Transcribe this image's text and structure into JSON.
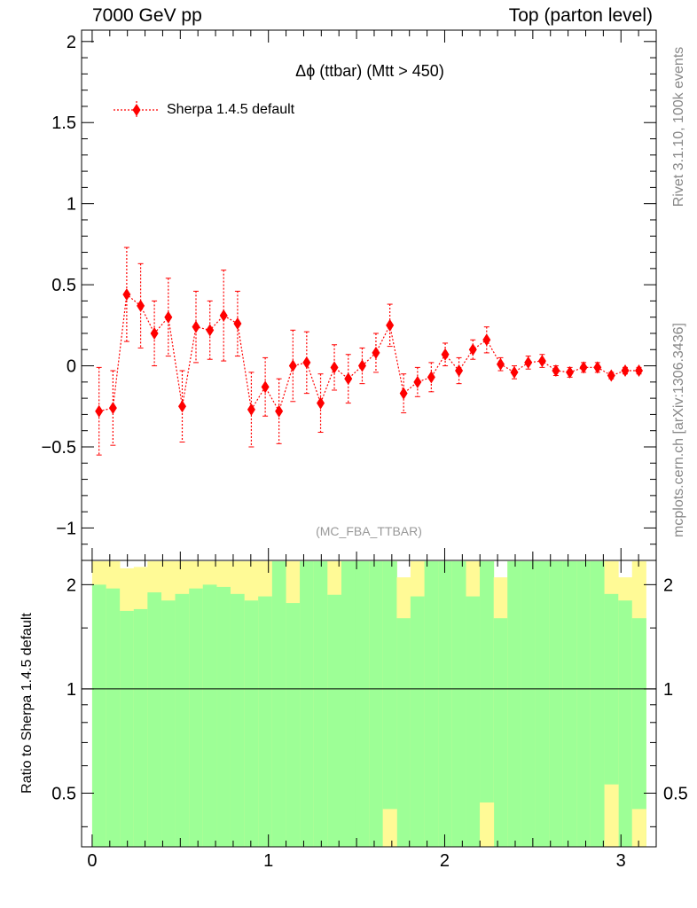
{
  "header": {
    "left": "7000 GeV pp",
    "right": "Top (parton level)"
  },
  "side": {
    "rivet": "Rivet 3.1.10,  100k events",
    "mcplots": "mcplots.cern.ch [arXiv:1306.3436]"
  },
  "ratio_ylabel": "Ratio to Sherpa 1.4.5 default",
  "colors": {
    "series": "#ff0000",
    "band_inner": "#9dff96",
    "band_outer": "#fffa96"
  },
  "chart_data": [
    {
      "type": "line",
      "title": "Δϕ (ttbar) (Mtt > 450)",
      "watermark": "(MC_FBA_TTBAR)",
      "xlim": [
        -0.06,
        3.2
      ],
      "ylim": [
        -1.2,
        2.07
      ],
      "yticks": [
        -1,
        -0.5,
        0,
        0.5,
        1,
        1.5,
        2
      ],
      "ytick_labels": [
        "−1",
        "−0.5",
        "0",
        "0.5",
        "1",
        "1.5",
        "2"
      ],
      "series": [
        {
          "name": "Sherpa 1.4.5 default",
          "style": "red diamond markers, dotted line, error bars",
          "x": [
            0.039,
            0.118,
            0.196,
            0.275,
            0.353,
            0.432,
            0.511,
            0.589,
            0.668,
            0.746,
            0.825,
            0.903,
            0.982,
            1.06,
            1.139,
            1.217,
            1.296,
            1.374,
            1.453,
            1.532,
            1.61,
            1.689,
            1.767,
            1.846,
            1.924,
            2.003,
            2.081,
            2.16,
            2.238,
            2.317,
            2.395,
            2.474,
            2.553,
            2.631,
            2.71,
            2.788,
            2.867,
            2.945,
            3.024,
            3.102
          ],
          "y": [
            -0.28,
            -0.26,
            0.44,
            0.37,
            0.2,
            0.3,
            -0.25,
            0.24,
            0.22,
            0.31,
            0.26,
            -0.27,
            -0.13,
            -0.28,
            0.0,
            0.02,
            -0.23,
            -0.01,
            -0.08,
            0.0,
            0.08,
            0.25,
            -0.17,
            -0.1,
            -0.07,
            0.07,
            -0.03,
            0.1,
            0.16,
            0.01,
            -0.04,
            0.02,
            0.03,
            -0.03,
            -0.04,
            -0.01,
            -0.01,
            -0.06,
            -0.03,
            -0.03
          ],
          "yerr": [
            0.27,
            0.23,
            0.29,
            0.26,
            0.2,
            0.24,
            0.22,
            0.22,
            0.18,
            0.28,
            0.2,
            0.23,
            0.18,
            0.2,
            0.22,
            0.19,
            0.18,
            0.14,
            0.15,
            0.11,
            0.12,
            0.13,
            0.12,
            0.09,
            0.09,
            0.07,
            0.08,
            0.06,
            0.08,
            0.04,
            0.04,
            0.04,
            0.04,
            0.03,
            0.03,
            0.03,
            0.03,
            0.02,
            0.02,
            0.02
          ]
        }
      ]
    },
    {
      "type": "area",
      "ylabel": "Ratio to Sherpa 1.4.5 default",
      "xlim": [
        -0.06,
        3.2
      ],
      "ylim": [
        0.35,
        2.35
      ],
      "yscale": "log",
      "yticks": [
        0.5,
        1,
        2
      ],
      "ytick_labels": [
        "0.5",
        "1",
        "2"
      ],
      "xticks": [
        0,
        1,
        2,
        3
      ],
      "xtick_labels": [
        "0",
        "1",
        "2",
        "3"
      ],
      "reference_line": 1,
      "bin_edges": [
        0.0,
        0.079,
        0.157,
        0.236,
        0.314,
        0.393,
        0.471,
        0.55,
        0.628,
        0.707,
        0.785,
        0.864,
        0.942,
        1.021,
        1.1,
        1.178,
        1.257,
        1.335,
        1.414,
        1.492,
        1.571,
        1.649,
        1.728,
        1.806,
        1.885,
        1.963,
        2.042,
        2.121,
        2.199,
        2.278,
        2.356,
        2.435,
        2.513,
        2.592,
        2.67,
        2.749,
        2.827,
        2.906,
        2.985,
        3.063,
        3.142
      ],
      "bands": [
        {
          "name": "inner",
          "low": [
            0,
            0,
            0,
            0,
            0,
            0,
            0,
            0,
            0,
            0,
            0,
            0,
            0,
            0,
            0,
            0,
            0,
            0,
            0,
            0,
            0,
            0,
            0,
            0,
            0,
            0,
            0,
            0,
            0,
            0,
            0,
            0,
            0,
            0,
            0,
            0,
            0,
            0,
            0,
            0
          ],
          "high": [
            2.0,
            1.95,
            1.68,
            1.7,
            1.9,
            1.8,
            1.88,
            1.95,
            2.0,
            1.97,
            1.88,
            1.8,
            1.85,
            2.4,
            1.77,
            2.4,
            2.4,
            1.87,
            2.4,
            2.4,
            2.4,
            2.4,
            1.6,
            1.85,
            2.4,
            2.4,
            2.4,
            1.85,
            2.4,
            1.6,
            2.4,
            2.4,
            2.4,
            2.4,
            2.4,
            2.4,
            2.4,
            1.88,
            1.8,
            1.6
          ]
        },
        {
          "name": "outer",
          "low": [
            0,
            0,
            0,
            0,
            0,
            0,
            0,
            0,
            0,
            0,
            0,
            0,
            0,
            0,
            0,
            0,
            0,
            0,
            0,
            0,
            0,
            0,
            0,
            0,
            0,
            0,
            0,
            0,
            0,
            0,
            0,
            0,
            0,
            0,
            0,
            0,
            0,
            0,
            0,
            0
          ],
          "high": [
            2.4,
            2.4,
            2.23,
            2.25,
            2.4,
            2.4,
            2.4,
            2.4,
            2.4,
            2.4,
            2.4,
            2.4,
            2.4,
            2.4,
            2.4,
            2.4,
            2.4,
            2.4,
            2.4,
            2.4,
            2.4,
            2.4,
            2.1,
            2.4,
            2.4,
            2.4,
            2.4,
            2.4,
            2.4,
            2.1,
            2.4,
            2.4,
            2.4,
            2.4,
            2.4,
            2.4,
            2.4,
            2.4,
            2.1,
            2.4
          ]
        }
      ]
    }
  ]
}
